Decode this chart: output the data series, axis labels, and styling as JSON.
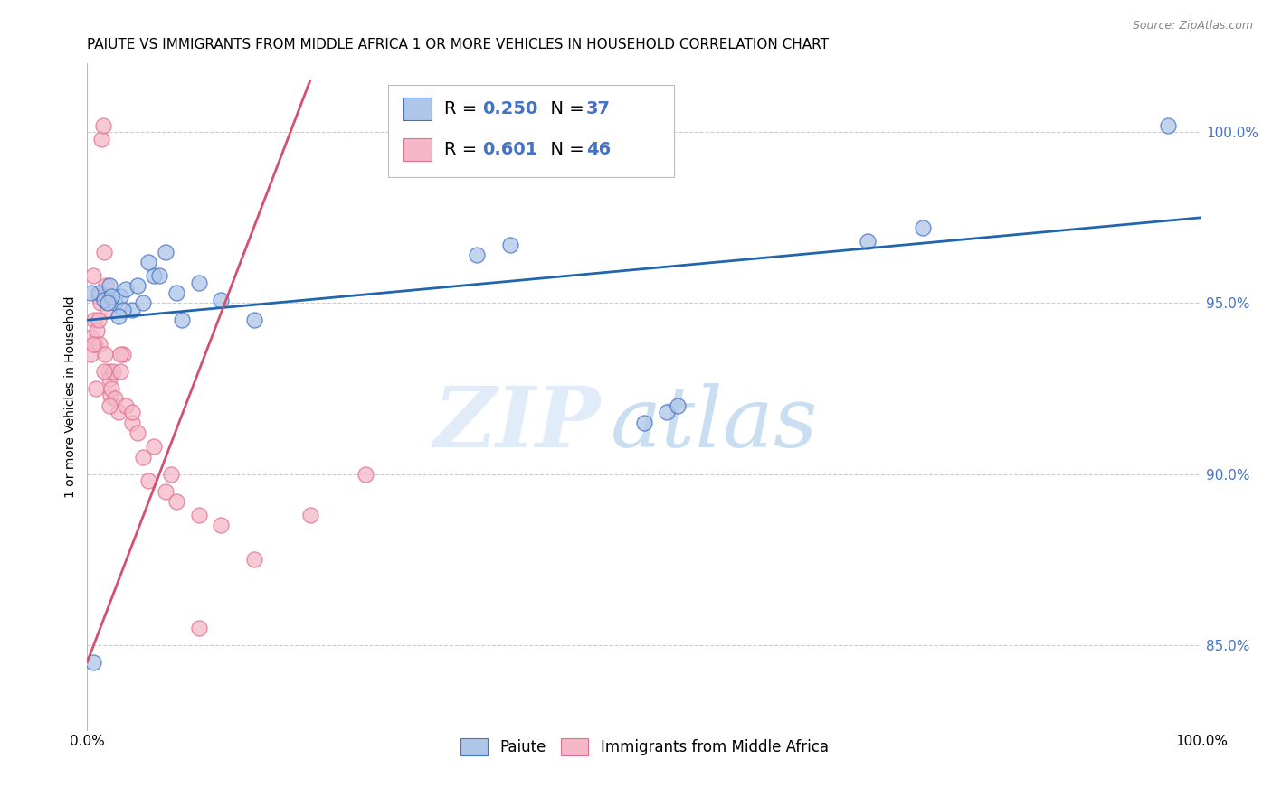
{
  "title": "PAIUTE VS IMMIGRANTS FROM MIDDLE AFRICA 1 OR MORE VEHICLES IN HOUSEHOLD CORRELATION CHART",
  "source": "Source: ZipAtlas.com",
  "ylabel": "1 or more Vehicles in Household",
  "xlim": [
    0.0,
    100.0
  ],
  "ylim": [
    82.5,
    102.0
  ],
  "yticks": [
    85.0,
    90.0,
    95.0,
    100.0
  ],
  "ytick_labels": [
    "85.0%",
    "90.0%",
    "95.0%",
    "100.0%"
  ],
  "blue_color": "#aec6e8",
  "pink_color": "#f4b8c8",
  "blue_edge_color": "#4472c4",
  "pink_edge_color": "#e07090",
  "blue_line_color": "#2166ac",
  "pink_line_color": "#d45070",
  "paiute_label": "Paiute",
  "immigrants_label": "Immigrants from Middle Africa",
  "blue_points_x": [
    0.5,
    1.0,
    1.5,
    2.0,
    2.5,
    3.0,
    3.5,
    4.0,
    5.0,
    6.0,
    7.0,
    8.0,
    10.0,
    12.0,
    15.0,
    2.2,
    3.2,
    4.5,
    5.5,
    50.0,
    52.0,
    53.0,
    70.0,
    75.0,
    97.0,
    1.8,
    2.8,
    6.5,
    8.5,
    35.0,
    38.0,
    0.3
  ],
  "blue_points_y": [
    84.5,
    95.3,
    95.1,
    95.5,
    95.0,
    95.2,
    95.4,
    94.8,
    95.0,
    95.8,
    96.5,
    95.3,
    95.6,
    95.1,
    94.5,
    95.2,
    94.8,
    95.5,
    96.2,
    91.5,
    91.8,
    92.0,
    96.8,
    97.2,
    100.2,
    95.0,
    94.6,
    95.8,
    94.5,
    96.4,
    96.7,
    95.3
  ],
  "pink_points_x": [
    0.3,
    0.4,
    0.5,
    0.6,
    0.7,
    0.8,
    0.9,
    1.0,
    1.1,
    1.2,
    1.3,
    1.4,
    1.5,
    1.6,
    1.7,
    1.8,
    1.9,
    2.0,
    2.1,
    2.2,
    2.3,
    2.5,
    2.8,
    3.0,
    3.2,
    3.5,
    4.0,
    4.5,
    5.0,
    6.0,
    7.0,
    8.0,
    10.0,
    12.0,
    15.0,
    20.0,
    25.0,
    0.5,
    1.0,
    1.5,
    2.0,
    3.0,
    4.0,
    5.5,
    7.5,
    10.0
  ],
  "pink_points_y": [
    93.5,
    94.0,
    95.8,
    94.5,
    93.8,
    92.5,
    94.2,
    95.2,
    93.8,
    95.0,
    99.8,
    100.2,
    96.5,
    93.5,
    95.5,
    94.8,
    93.0,
    92.8,
    92.3,
    92.5,
    93.0,
    92.2,
    91.8,
    93.0,
    93.5,
    92.0,
    91.5,
    91.2,
    90.5,
    90.8,
    89.5,
    89.2,
    88.8,
    88.5,
    87.5,
    88.8,
    90.0,
    93.8,
    94.5,
    93.0,
    92.0,
    93.5,
    91.8,
    89.8,
    90.0,
    85.5
  ],
  "blue_line_x": [
    0.0,
    100.0
  ],
  "blue_line_y": [
    94.5,
    97.5
  ],
  "pink_line_x": [
    0.0,
    20.0
  ],
  "pink_line_y": [
    84.5,
    101.5
  ],
  "watermark_zip": "ZIP",
  "watermark_atlas": "atlas",
  "background_color": "#ffffff",
  "grid_color": "#cccccc",
  "title_fontsize": 11,
  "axis_label_fontsize": 10,
  "tick_fontsize": 11,
  "legend_fontsize": 14
}
